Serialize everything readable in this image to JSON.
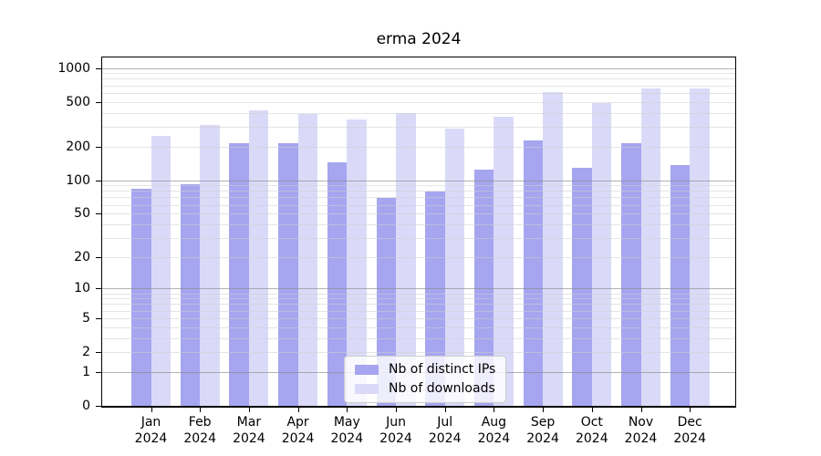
{
  "title": "erma 2024",
  "colors": {
    "background": "#ffffff",
    "axis": "#000000",
    "grid_major": "#8a8a8a",
    "grid_minor": "#cfcfcf",
    "bar_distinct_ips": "#a5a5f0",
    "bar_downloads": "#dadaf8",
    "legend_border": "#cccccc"
  },
  "chart_data": {
    "type": "bar",
    "title": "erma 2024",
    "categories": [
      "Jan",
      "Feb",
      "Mar",
      "Apr",
      "May",
      "Jun",
      "Jul",
      "Aug",
      "Sep",
      "Oct",
      "Nov",
      "Dec"
    ],
    "year": "2024",
    "series": [
      {
        "name": "Nb of distinct IPs",
        "color": "#a5a5f0",
        "values": [
          83,
          92,
          215,
          215,
          143,
          69,
          79,
          125,
          225,
          130,
          213,
          136
        ]
      },
      {
        "name": "Nb of downloads",
        "color": "#dadaf8",
        "values": [
          250,
          310,
          420,
          390,
          345,
          395,
          290,
          370,
          615,
          485,
          655,
          655
        ]
      }
    ],
    "xlabel": "",
    "ylabel": "",
    "y_scale": "log1p",
    "ylim": [
      0,
      1240
    ],
    "y_ticks": [
      0,
      1,
      2,
      5,
      10,
      20,
      50,
      100,
      200,
      500,
      1000
    ],
    "grid": true,
    "legend_position": "bottom-center"
  }
}
